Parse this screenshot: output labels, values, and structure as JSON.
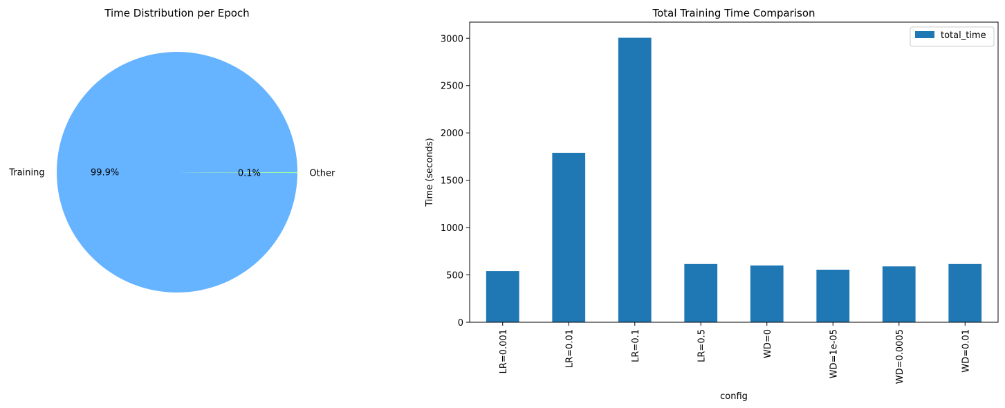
{
  "chart_data": [
    {
      "type": "pie",
      "title": "Time Distribution per Epoch",
      "slices": [
        {
          "label": "Training",
          "value": 99.9,
          "pct_label": "99.9%",
          "color": "#66b3ff"
        },
        {
          "label": "Other",
          "value": 0.1,
          "pct_label": "0.1%",
          "color": "#99ff99"
        }
      ]
    },
    {
      "type": "bar",
      "title": "Total Training Time Comparison",
      "xlabel": "config",
      "ylabel": "Time (seconds)",
      "categories": [
        "LR=0.001",
        "LR=0.01",
        "LR=0.1",
        "LR=0.5",
        "WD=0",
        "WD=1e-05",
        "WD=0.0005",
        "WD=0.01"
      ],
      "series": [
        {
          "name": "total_time",
          "color": "#1f77b4",
          "values": [
            540,
            1790,
            3005,
            615,
            600,
            555,
            590,
            615
          ]
        }
      ],
      "ylim": [
        0,
        3170
      ],
      "yticks": [
        0,
        500,
        1000,
        1500,
        2000,
        2500,
        3000
      ],
      "grid": false,
      "legend": "top-right"
    }
  ]
}
